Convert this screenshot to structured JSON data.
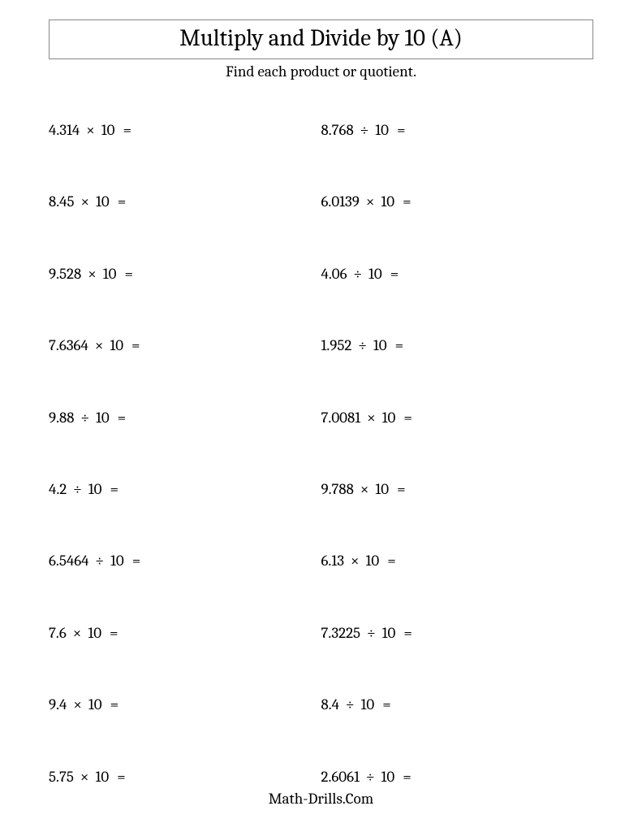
{
  "title": "Multiply and Divide by 10 (A)",
  "subtitle": "Find each product or quotient.",
  "footer": "Math-Drills.Com",
  "problems": [
    {
      "operand1": "4.314",
      "operator": "×",
      "operand2": "10"
    },
    {
      "operand1": "8.768",
      "operator": "÷",
      "operand2": "10"
    },
    {
      "operand1": "8.45",
      "operator": "×",
      "operand2": "10"
    },
    {
      "operand1": "6.0139",
      "operator": "×",
      "operand2": "10"
    },
    {
      "operand1": "9.528",
      "operator": "×",
      "operand2": "10"
    },
    {
      "operand1": "4.06",
      "operator": "÷",
      "operand2": "10"
    },
    {
      "operand1": "7.6364",
      "operator": "×",
      "operand2": "10"
    },
    {
      "operand1": "1.952",
      "operator": "÷",
      "operand2": "10"
    },
    {
      "operand1": "9.88",
      "operator": "÷",
      "operand2": "10"
    },
    {
      "operand1": "7.0081",
      "operator": "×",
      "operand2": "10"
    },
    {
      "operand1": "4.2",
      "operator": "÷",
      "operand2": "10"
    },
    {
      "operand1": "9.788",
      "operator": "×",
      "operand2": "10"
    },
    {
      "operand1": "6.5464",
      "operator": "÷",
      "operand2": "10"
    },
    {
      "operand1": "6.13",
      "operator": "×",
      "operand2": "10"
    },
    {
      "operand1": "7.6",
      "operator": "×",
      "operand2": "10"
    },
    {
      "operand1": "7.3225",
      "operator": "÷",
      "operand2": "10"
    },
    {
      "operand1": "9.4",
      "operator": "×",
      "operand2": "10"
    },
    {
      "operand1": "8.4",
      "operator": "÷",
      "operand2": "10"
    },
    {
      "operand1": "5.75",
      "operator": "×",
      "operand2": "10"
    },
    {
      "operand1": "2.6061",
      "operator": "÷",
      "operand2": "10"
    }
  ],
  "equals": "=",
  "style": {
    "background_color": "#ffffff",
    "text_color": "#000000",
    "border_color": "#888888",
    "title_fontsize": 29,
    "subtitle_fontsize": 19,
    "problem_fontsize": 19,
    "footer_fontsize": 19,
    "rows": 10,
    "columns": 2,
    "row_gap": 61
  }
}
